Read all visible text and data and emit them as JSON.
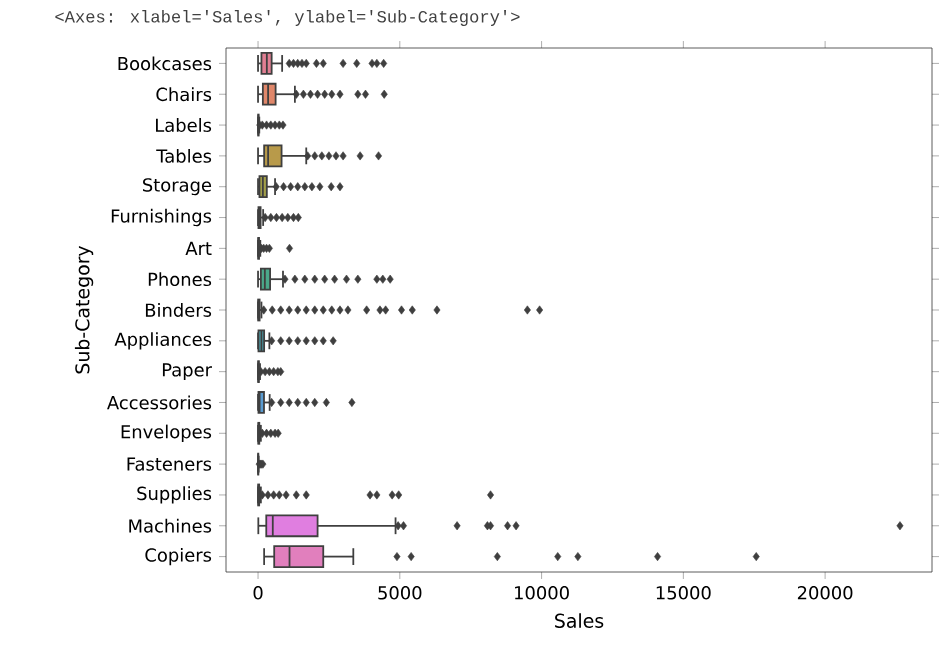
{
  "chart_data": {
    "type": "box",
    "orientation": "horizontal",
    "xlabel": "Sales",
    "ylabel": "Sub-Category",
    "annotations": [
      "<Axes: xlabel='Sales', ylabel='Sub-Category'>"
    ],
    "categories": [
      "Bookcases",
      "Chairs",
      "Labels",
      "Tables",
      "Storage",
      "Furnishings",
      "Art",
      "Phones",
      "Binders",
      "Appliances",
      "Paper",
      "Accessories",
      "Envelopes",
      "Fasteners",
      "Supplies",
      "Machines",
      "Copiers"
    ],
    "colors": [
      "#e17f93",
      "#e0876a",
      "#c9925f",
      "#b89a4a",
      "#a29f4a",
      "#8da64a",
      "#6dab5a",
      "#4ba88a",
      "#4aa69c",
      "#4aa2ae",
      "#4a9fbc",
      "#5a9bd0",
      "#7b96d8",
      "#a38fd8",
      "#c384d6",
      "#e07ee0",
      "#e17fbd"
    ],
    "boxes": [
      {
        "low": 0,
        "q1": 120,
        "median": 310,
        "q3": 480,
        "high": 850,
        "outliers": [
          1100,
          1250,
          1400,
          1550,
          1700,
          2060,
          2300,
          3000,
          3480,
          4020,
          4190,
          4430
        ]
      },
      {
        "low": 0,
        "q1": 170,
        "median": 355,
        "q3": 620,
        "high": 1300,
        "outliers": [
          1350,
          1600,
          1850,
          2100,
          2350,
          2600,
          2890,
          3520,
          3790,
          4450
        ]
      },
      {
        "low": 0,
        "q1": 5,
        "median": 9,
        "q3": 21,
        "high": 44,
        "outliers": [
          60,
          150,
          300,
          450,
          600,
          750,
          880
        ]
      },
      {
        "low": 0,
        "q1": 215,
        "median": 355,
        "q3": 830,
        "high": 1700,
        "outliers": [
          1750,
          2000,
          2250,
          2500,
          2750,
          3000,
          3600,
          4250
        ]
      },
      {
        "low": 0,
        "q1": 50,
        "median": 170,
        "q3": 310,
        "high": 600,
        "outliers": [
          640,
          900,
          1150,
          1400,
          1650,
          1900,
          2180,
          2580,
          2890
        ]
      },
      {
        "low": 0,
        "q1": 15,
        "median": 40,
        "q3": 90,
        "high": 180,
        "outliers": [
          250,
          450,
          650,
          850,
          1050,
          1250,
          1420
        ]
      },
      {
        "low": 0,
        "q1": 5,
        "median": 15,
        "q3": 35,
        "high": 80,
        "outliers": [
          120,
          200,
          300,
          400,
          1110
        ]
      },
      {
        "low": 0,
        "q1": 100,
        "median": 240,
        "q3": 425,
        "high": 880,
        "outliers": [
          950,
          1300,
          1650,
          2000,
          2350,
          2700,
          3120,
          3520,
          4190,
          4400,
          4660
        ]
      },
      {
        "low": 0,
        "q1": 5,
        "median": 15,
        "q3": 55,
        "high": 120,
        "outliers": [
          200,
          500,
          800,
          1100,
          1400,
          1700,
          2000,
          2300,
          2600,
          2890,
          3170,
          3830,
          4300,
          4500,
          5060,
          5440,
          6310,
          9500,
          9930
        ]
      },
      {
        "low": 0,
        "q1": 15,
        "median": 120,
        "q3": 215,
        "high": 400,
        "outliers": [
          480,
          800,
          1100,
          1400,
          1700,
          2000,
          2300,
          2650
        ]
      },
      {
        "low": 0,
        "q1": 5,
        "median": 12,
        "q3": 30,
        "high": 70,
        "outliers": [
          100,
          250,
          400,
          550,
          700,
          800
        ]
      },
      {
        "low": 0,
        "q1": 15,
        "median": 55,
        "q3": 210,
        "high": 410,
        "outliers": [
          480,
          800,
          1100,
          1400,
          1700,
          2000,
          2410,
          3310
        ]
      },
      {
        "low": 0,
        "q1": 10,
        "median": 20,
        "q3": 45,
        "high": 100,
        "outliers": [
          150,
          300,
          450,
          600,
          710
        ]
      },
      {
        "low": 0,
        "q1": 2,
        "median": 5,
        "q3": 10,
        "high": 22,
        "outliers": [
          40,
          80,
          120,
          170
        ]
      },
      {
        "low": 0,
        "q1": 5,
        "median": 15,
        "q3": 40,
        "high": 100,
        "outliers": [
          150,
          350,
          550,
          750,
          990,
          1350,
          1700,
          3950,
          4190,
          4730,
          4960,
          8200
        ]
      },
      {
        "low": 10,
        "q1": 290,
        "median": 520,
        "q3": 2100,
        "high": 4850,
        "outliers": [
          4940,
          5130,
          7020,
          8090,
          8200,
          8800,
          9100,
          22640
        ]
      },
      {
        "low": 215,
        "q1": 570,
        "median": 1110,
        "q3": 2300,
        "high": 3360,
        "outliers": [
          4900,
          5400,
          8440,
          10570,
          11280,
          14090,
          17570
        ]
      }
    ],
    "xlim": [
      -1130,
      23770
    ],
    "xticks": [
      0,
      5000,
      10000,
      15000,
      20000
    ],
    "marker": "diamond"
  }
}
